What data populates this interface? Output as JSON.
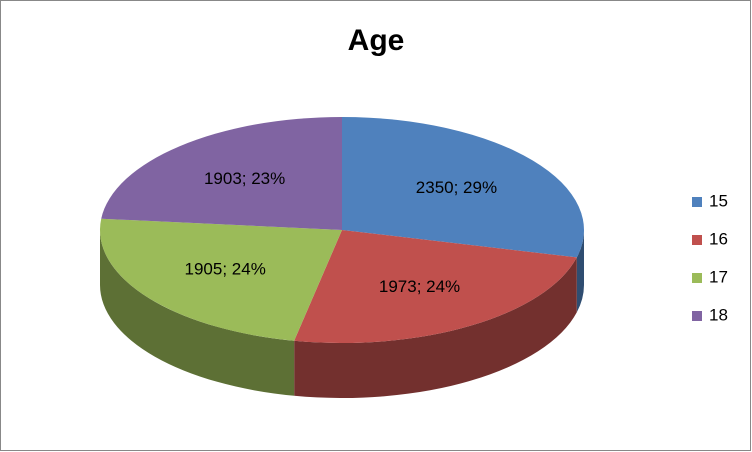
{
  "chart_data": {
    "type": "pie3d",
    "title": "Age",
    "categories": [
      "15",
      "16",
      "17",
      "18"
    ],
    "values": [
      2350,
      1973,
      1905,
      1903
    ],
    "value_labels": [
      "2350; 29%",
      "1973; 24%",
      "1905; 24%",
      "1903; 23%"
    ],
    "colors": [
      "#4f81bd",
      "#c0504d",
      "#9bbb59",
      "#8064a2"
    ],
    "legend": "right"
  }
}
